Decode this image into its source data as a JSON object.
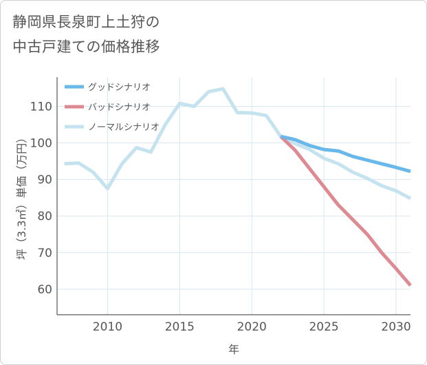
{
  "title_lines": [
    "静岡県長泉町上土狩の",
    "中古戸建ての価格推移"
  ],
  "chart_data": {
    "type": "line",
    "xlabel": "年",
    "ylabel": "坪（3.3㎡）単価（万円）",
    "xlim": [
      2006.5,
      2031
    ],
    "ylim": [
      53,
      118
    ],
    "xticks": [
      2010,
      2015,
      2020,
      2025,
      2030
    ],
    "yticks": [
      60,
      70,
      80,
      90,
      100,
      110
    ],
    "grid": true,
    "legend_position": "top-left",
    "series": [
      {
        "name": "グッドシナリオ",
        "color": "#6ab7ea",
        "x": [
          2022,
          2023,
          2024,
          2025,
          2026,
          2027,
          2028,
          2029,
          2030,
          2031
        ],
        "y": [
          101.8,
          100.9,
          99.3,
          98.2,
          97.8,
          96.3,
          95.3,
          94.3,
          93.3,
          92.2
        ]
      },
      {
        "name": "バッドシナリオ",
        "color": "#dd8a92",
        "x": [
          2022,
          2023,
          2024,
          2025,
          2026,
          2027,
          2028,
          2029,
          2030,
          2031
        ],
        "y": [
          101.8,
          98.0,
          93.0,
          88.0,
          83.0,
          79.0,
          75.0,
          70.0,
          65.6,
          61.0
        ]
      },
      {
        "name": "ノーマルシナリオ",
        "color": "#c5e3ef",
        "x": [
          2007,
          2008,
          2009,
          2010,
          2011,
          2012,
          2013,
          2014,
          2015,
          2016,
          2017,
          2018,
          2019,
          2020,
          2021,
          2022,
          2023,
          2024,
          2025,
          2026,
          2027,
          2028,
          2029,
          2030,
          2031
        ],
        "y": [
          94.3,
          94.5,
          92.0,
          87.5,
          94.3,
          98.7,
          97.5,
          105.0,
          110.8,
          110.0,
          114.0,
          114.8,
          108.3,
          108.2,
          107.5,
          101.8,
          99.8,
          98.2,
          95.8,
          94.3,
          92.0,
          90.3,
          88.3,
          86.9,
          84.8
        ]
      }
    ]
  }
}
